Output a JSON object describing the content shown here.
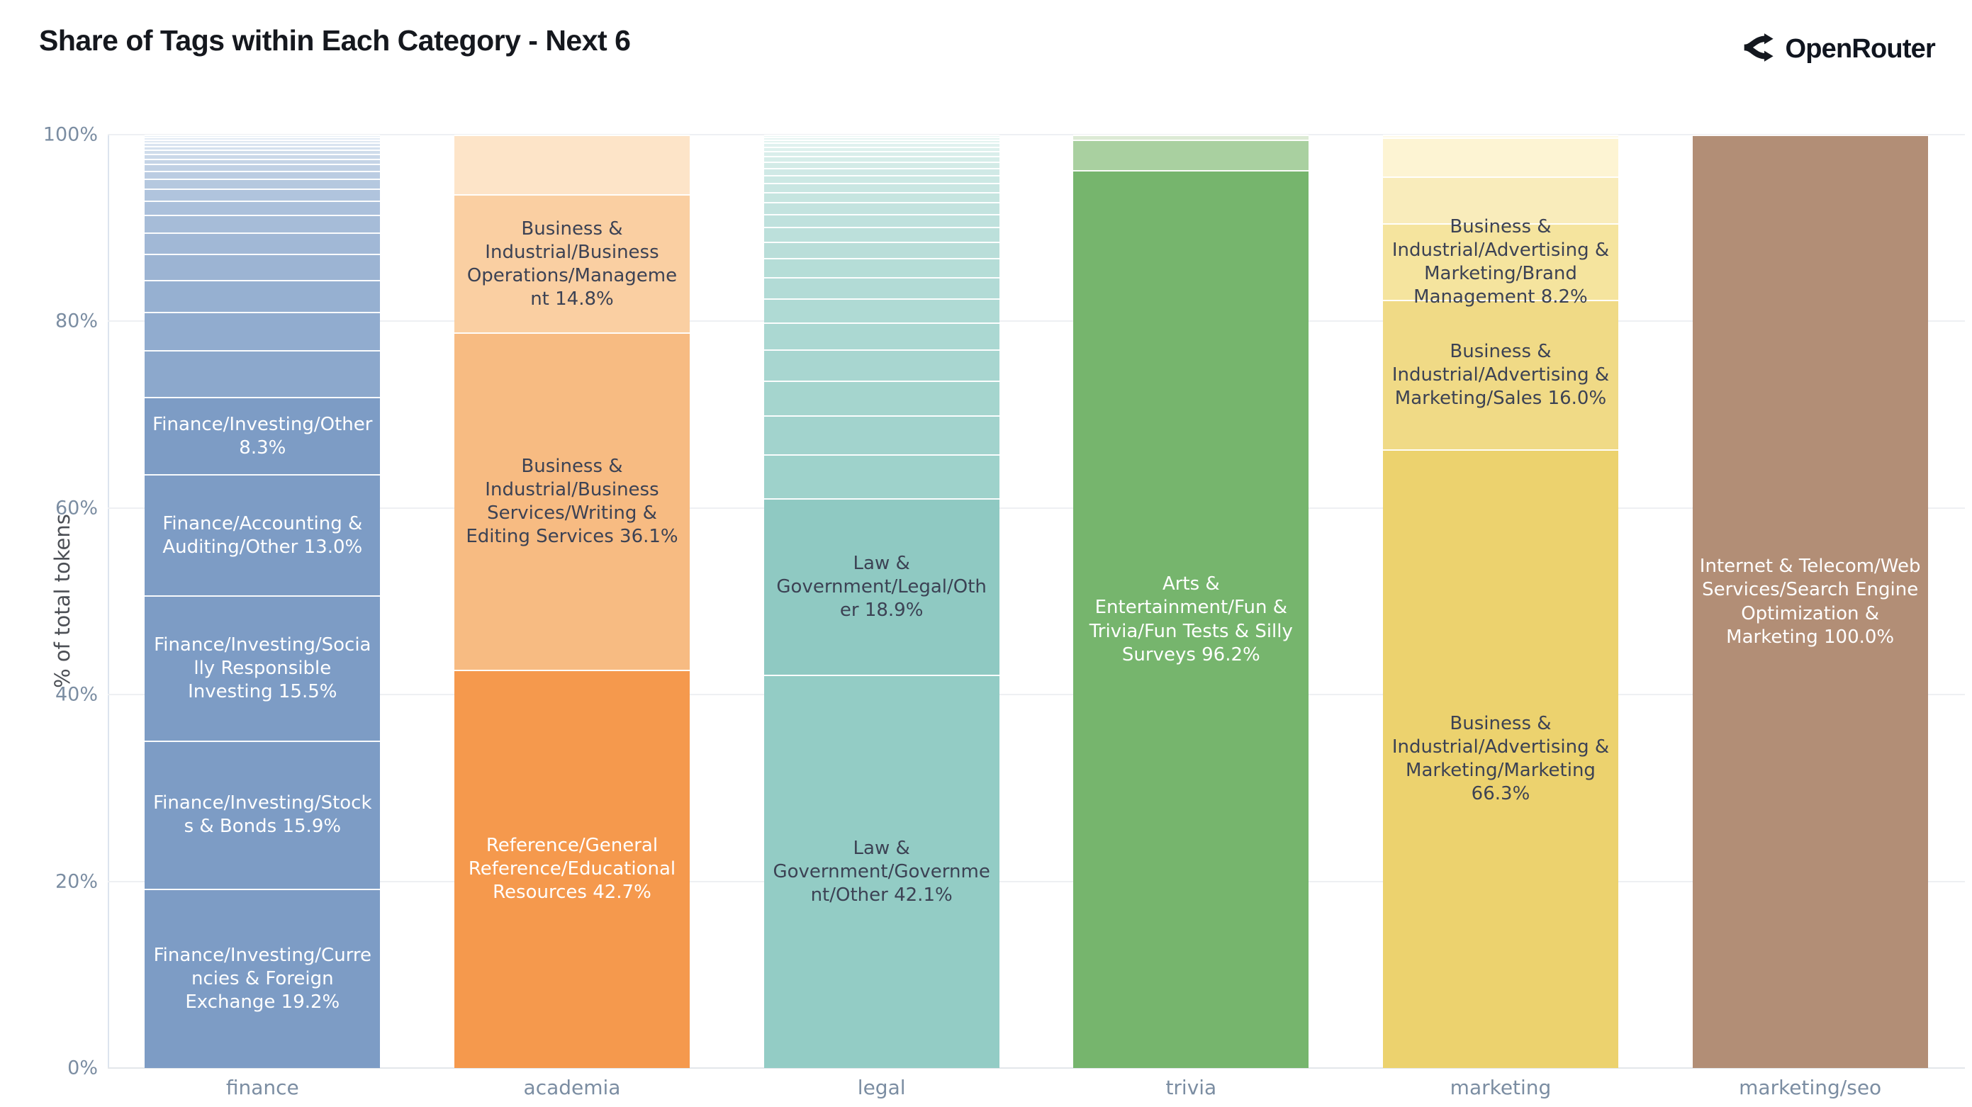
{
  "title": "Share of Tags within Each Category - Next 6",
  "logo": {
    "text": "OpenRouter"
  },
  "y_axis": {
    "label": "% of total tokens",
    "ticks": [
      {
        "label": "0%",
        "value": 0
      },
      {
        "label": "20%",
        "value": 20
      },
      {
        "label": "40%",
        "value": 40
      },
      {
        "label": "60%",
        "value": 60
      },
      {
        "label": "80%",
        "value": 80
      },
      {
        "label": "100%",
        "value": 100
      }
    ]
  },
  "style": {
    "title_color": "#15181e",
    "logo_color": "#10151f",
    "ytitle_color": "#4c4f55",
    "tick_color": "#7b8da2",
    "grid_color": "#eef0f3",
    "baseline_color": "#e3e6ea",
    "axisline_color": "#dce4ee",
    "label_dark": "#3c4254",
    "label_light": "#ffffff"
  },
  "chart_data": {
    "type": "bar",
    "stacked": true,
    "unit": "percent",
    "ylim": [
      0,
      100
    ],
    "ylabel": "% of total tokens",
    "grid": true,
    "categories": [
      "finance",
      "academia",
      "legal",
      "trivia",
      "marketing",
      "marketing/seo"
    ],
    "note": "segments listed bottom-to-top; segments without a label are unlabeled small tags; segments with color null are auto-faded stripes",
    "bars": [
      {
        "category": "finance",
        "color": "#7d9cc5",
        "text": "#ffffff",
        "fade_from": "#87a4ca",
        "fade_to": "#e9f0f7",
        "segments": [
          {
            "label": "Finance/Investing/Currencies & Foreign Exchange 19.2%",
            "value": 19.2,
            "color": "#7d9cc5"
          },
          {
            "label": "Finance/Investing/Stocks & Bonds 15.9%",
            "value": 15.9,
            "color": "#7d9cc5"
          },
          {
            "label": "Finance/Investing/Socially Responsible Investing 15.5%",
            "value": 15.5,
            "color": "#7d9cc5"
          },
          {
            "label": "Finance/Accounting & Auditing/Other 13.0%",
            "value": 13.0,
            "color": "#7d9cc5"
          },
          {
            "label": "Finance/Investing/Other 8.3%",
            "value": 8.3,
            "color": "#7d9cc5"
          },
          {
            "value": 5.0,
            "color": null
          },
          {
            "value": 4.1,
            "color": null
          },
          {
            "value": 3.4,
            "color": null
          },
          {
            "value": 2.8,
            "color": null
          },
          {
            "value": 2.3,
            "color": null
          },
          {
            "value": 1.9,
            "color": null
          },
          {
            "value": 1.55,
            "color": null
          },
          {
            "value": 1.3,
            "color": null
          },
          {
            "value": 1.05,
            "color": null
          },
          {
            "value": 0.85,
            "color": null
          },
          {
            "value": 0.7,
            "color": null
          },
          {
            "value": 0.6,
            "color": null
          },
          {
            "value": 0.5,
            "color": null
          },
          {
            "value": 0.45,
            "color": null
          },
          {
            "value": 0.4,
            "color": null
          },
          {
            "value": 0.35,
            "color": null
          },
          {
            "value": 0.3,
            "color": null
          },
          {
            "value": 0.3,
            "color": null
          },
          {
            "value": 0.25,
            "color": null
          }
        ]
      },
      {
        "category": "academia",
        "color": "#f5994d",
        "text": "#3c4254",
        "segments": [
          {
            "label": "Reference/General Reference/Educational Resources 42.7%",
            "value": 42.7,
            "color": "#f5994d",
            "text": "#ffffff"
          },
          {
            "label": "Business & Industrial/Business Services/Writing & Editing Services 36.1%",
            "value": 36.1,
            "color": "#f7bb82"
          },
          {
            "label": "Business & Industrial/Business Operations/Management 14.8%",
            "value": 14.8,
            "color": "#facfa2"
          },
          {
            "value": 6.4,
            "color": "#fde4c8"
          }
        ]
      },
      {
        "category": "legal",
        "color": "#92cbc4",
        "text": "#3c4254",
        "fade_from": "#9bd0c9",
        "fade_to": "#eaf6f4",
        "segments": [
          {
            "label": "Law & Government/Government/Other 42.1%",
            "value": 42.1,
            "color": "#93ccc5"
          },
          {
            "label": "Law & Government/Legal/Other 18.9%",
            "value": 18.9,
            "color": "#8fc9c2"
          },
          {
            "value": 4.75,
            "color": null
          },
          {
            "value": 4.2,
            "color": null
          },
          {
            "value": 3.72,
            "color": null
          },
          {
            "value": 3.29,
            "color": null
          },
          {
            "value": 2.91,
            "color": null
          },
          {
            "value": 2.58,
            "color": null
          },
          {
            "value": 2.28,
            "color": null
          },
          {
            "value": 2.02,
            "color": null
          },
          {
            "value": 1.79,
            "color": null
          },
          {
            "value": 1.58,
            "color": null
          },
          {
            "value": 1.4,
            "color": null
          },
          {
            "value": 1.24,
            "color": null
          },
          {
            "value": 1.1,
            "color": null
          },
          {
            "value": 0.97,
            "color": null
          },
          {
            "value": 0.86,
            "color": null
          },
          {
            "value": 0.76,
            "color": null
          },
          {
            "value": 0.67,
            "color": null
          },
          {
            "value": 0.6,
            "color": null
          },
          {
            "value": 0.53,
            "color": null
          },
          {
            "value": 0.47,
            "color": null
          },
          {
            "value": 0.41,
            "color": null
          },
          {
            "value": 0.36,
            "color": null
          },
          {
            "value": 0.32,
            "color": null
          },
          {
            "value": 0.19,
            "color": null
          }
        ]
      },
      {
        "category": "trivia",
        "color": "#76b56d",
        "text": "#ffffff",
        "segments": [
          {
            "label": "Arts & Entertainment/Fun & Trivia/Fun Tests & Silly Surveys 96.2%",
            "value": 96.2,
            "color": "#76b56d"
          },
          {
            "value": 3.3,
            "color": "#a9d0a0"
          },
          {
            "value": 0.5,
            "color": "#dcead5"
          }
        ]
      },
      {
        "category": "marketing",
        "color": "#ecd26e",
        "text": "#3c4254",
        "segments": [
          {
            "label": "Business & Industrial/Advertising & Marketing/Marketing 66.3%",
            "value": 66.3,
            "color": "#ecd26e"
          },
          {
            "label": "Business & Industrial/Advertising & Marketing/Sales 16.0%",
            "value": 16.0,
            "color": "#f0da86"
          },
          {
            "label": "Business & Industrial/Advertising & Marketing/Brand Management 8.2%",
            "value": 8.2,
            "color": "#f5e49e"
          },
          {
            "value": 5.0,
            "color": "#f9ecbb"
          },
          {
            "value": 4.2,
            "color": "#fdf4d3"
          },
          {
            "value": 0.3,
            "color": "#fefaea"
          }
        ]
      },
      {
        "category": "marketing/seo",
        "color": "#b28e76",
        "text": "#ffffff",
        "segments": [
          {
            "label": "Internet & Telecom/Web Services/Search Engine Optimization & Marketing 100.0%",
            "value": 100.0,
            "color": "#b28e76"
          }
        ]
      }
    ]
  }
}
